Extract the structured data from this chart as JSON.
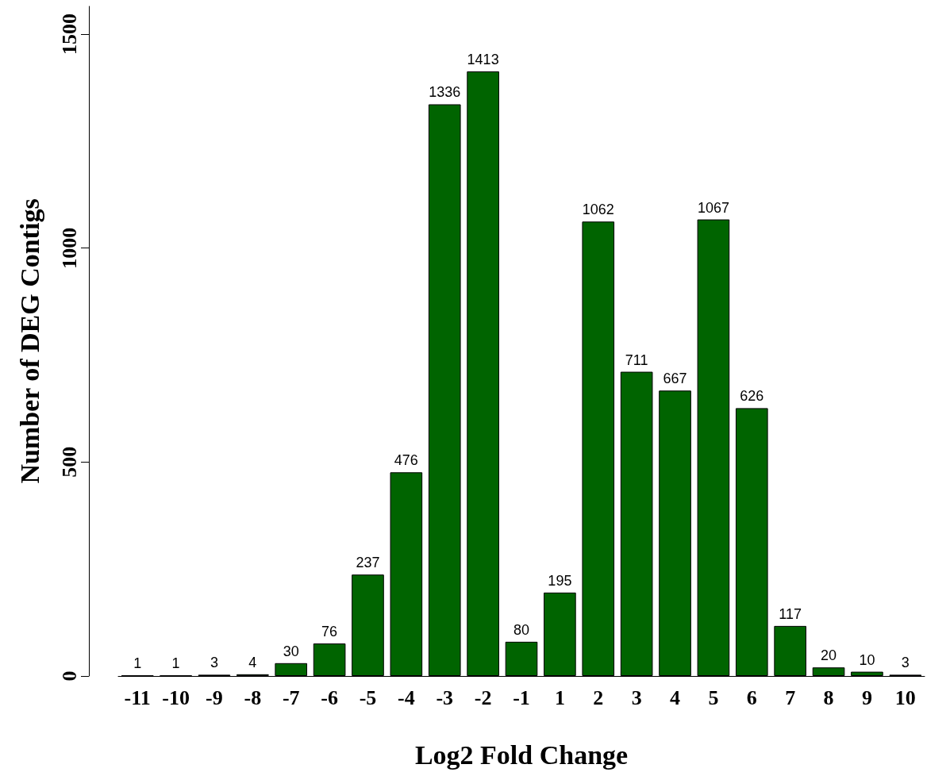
{
  "chart_data": {
    "type": "bar",
    "xlabel": "Log2 Fold Change",
    "ylabel": "Number of DEG Contigs",
    "categories": [
      "-11",
      "-10",
      "-9",
      "-8",
      "-7",
      "-6",
      "-5",
      "-4",
      "-3",
      "-2",
      "-1",
      "1",
      "2",
      "3",
      "4",
      "5",
      "6",
      "7",
      "8",
      "9",
      "10"
    ],
    "values": [
      1,
      1,
      3,
      4,
      30,
      76,
      237,
      476,
      1336,
      1413,
      80,
      195,
      1062,
      711,
      667,
      1067,
      626,
      117,
      20,
      10,
      3
    ],
    "color": "#006400",
    "ylim": [
      0,
      1565
    ],
    "yticks": [
      0,
      500,
      1000,
      1500
    ],
    "data_labels": true,
    "grid": false
  }
}
